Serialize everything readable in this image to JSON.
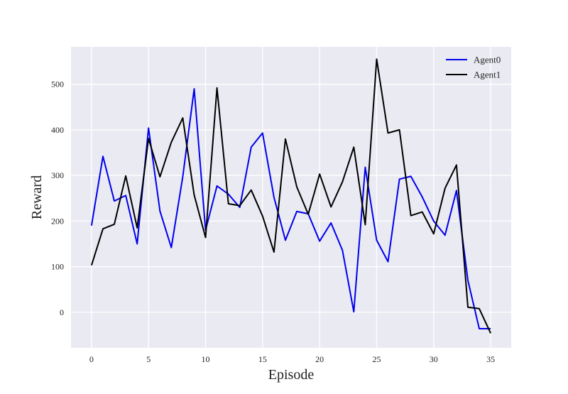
{
  "chart_data": {
    "type": "line",
    "title": "",
    "xlabel": "Episode",
    "ylabel": "Reward",
    "xlim": [
      -1.8,
      36.8
    ],
    "ylim": [
      -78,
      582
    ],
    "xticks": [
      0,
      5,
      10,
      15,
      20,
      25,
      30,
      35
    ],
    "yticks": [
      0,
      100,
      200,
      300,
      400,
      500
    ],
    "grid": true,
    "legend_position": "top-right",
    "x": [
      0,
      1,
      2,
      3,
      4,
      5,
      6,
      7,
      8,
      9,
      10,
      11,
      12,
      13,
      14,
      15,
      16,
      17,
      18,
      19,
      20,
      21,
      22,
      23,
      24,
      25,
      26,
      27,
      28,
      29,
      30,
      31,
      32,
      33,
      34,
      35
    ],
    "series": [
      {
        "name": "Agent0",
        "color": "#0000ee",
        "values": [
          190,
          342,
          244,
          256,
          150,
          404,
          222,
          142,
          297,
          490,
          180,
          277,
          259,
          230,
          362,
          393,
          252,
          158,
          221,
          216,
          156,
          196,
          136,
          1,
          318,
          158,
          111,
          292,
          298,
          253,
          200,
          169,
          267,
          70,
          -36,
          -36
        ]
      },
      {
        "name": "Agent1",
        "color": "#000000",
        "values": [
          103,
          183,
          193,
          299,
          185,
          381,
          297,
          373,
          426,
          257,
          164,
          492,
          238,
          234,
          268,
          211,
          132,
          380,
          275,
          215,
          303,
          231,
          286,
          362,
          192,
          555,
          393,
          400,
          212,
          220,
          172,
          272,
          323,
          11,
          8,
          -46
        ]
      }
    ]
  }
}
